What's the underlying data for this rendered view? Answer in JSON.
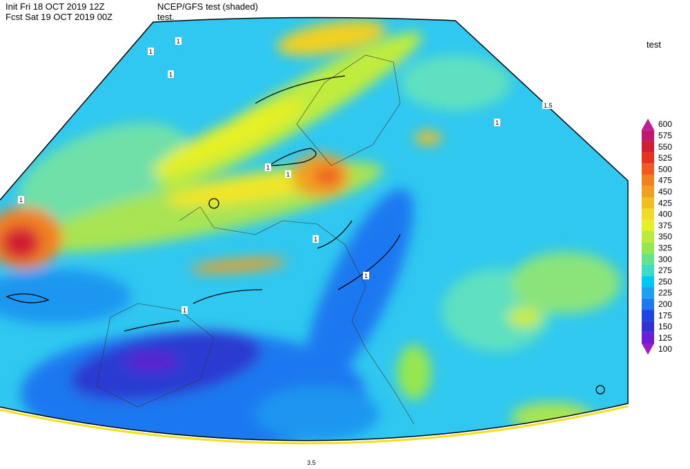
{
  "header": {
    "init": "Init  Fri 18 OCT 2019 12Z",
    "product": "NCEP/GFS test (shaded)",
    "forecast": "Fcst Sat 19 OCT 2019 00Z",
    "field": "test."
  },
  "legend": {
    "title": "test",
    "levels": [
      {
        "value": 100,
        "color": "#9a1fc8"
      },
      {
        "value": 125,
        "color": "#6a1ed8"
      },
      {
        "value": 150,
        "color": "#3232d2"
      },
      {
        "value": 175,
        "color": "#1e46e6"
      },
      {
        "value": 200,
        "color": "#1e78f0"
      },
      {
        "value": 225,
        "color": "#1ea0f0"
      },
      {
        "value": 250,
        "color": "#00c8f0"
      },
      {
        "value": 275,
        "color": "#3cdcc8"
      },
      {
        "value": 300,
        "color": "#64e48c"
      },
      {
        "value": 325,
        "color": "#96e650"
      },
      {
        "value": 350,
        "color": "#b9ea3c"
      },
      {
        "value": 375,
        "color": "#e6f028"
      },
      {
        "value": 400,
        "color": "#f0dc28"
      },
      {
        "value": 425,
        "color": "#f0be20"
      },
      {
        "value": 450,
        "color": "#f0a020"
      },
      {
        "value": 475,
        "color": "#f08220"
      },
      {
        "value": 500,
        "color": "#f05a20"
      },
      {
        "value": 525,
        "color": "#e6321e"
      },
      {
        "value": 550,
        "color": "#d21e32"
      },
      {
        "value": 575,
        "color": "#c0186e"
      },
      {
        "value": 600,
        "color": "#c01e96"
      }
    ]
  },
  "contour_labels": [
    "1",
    "1",
    "1",
    "1",
    "1",
    "1",
    "1",
    "1",
    "1",
    "1",
    "1.5",
    "3.5"
  ]
}
